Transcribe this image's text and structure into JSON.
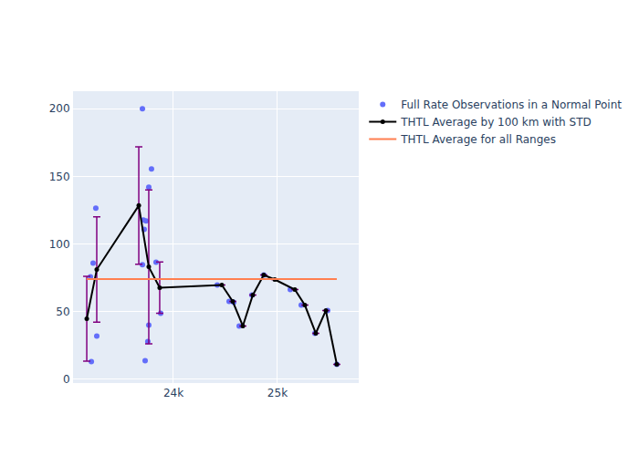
{
  "chart_data": {
    "type": "scatter",
    "xlim": [
      23035,
      25781
    ],
    "ylim": [
      -3,
      213
    ],
    "xticks": [
      {
        "value": 24000,
        "label": "24k"
      },
      {
        "value": 25000,
        "label": "25k"
      }
    ],
    "yticks": [
      0,
      50,
      100,
      150,
      200
    ],
    "grid": true,
    "legend": "right",
    "series": [
      {
        "name": "Full Rate Observations in a Normal Point",
        "type": "scatter",
        "marker": "circle",
        "color": "#636efa",
        "x": [
          23211,
          23202,
          23228,
          23254,
          23263,
          23702,
          23702,
          23711,
          23737,
          23719,
          23789,
          23763,
          23728,
          23754,
          23763,
          23833,
          23877,
          24421,
          24535,
          24579,
          24632,
          24754,
          24868,
          25123,
          25228,
          25360,
          25482,
          25570
        ],
        "values": [
          12.8,
          75.7,
          85.8,
          126.4,
          31.8,
          200,
          84.5,
          117.6,
          117,
          110.8,
          155.4,
          141.9,
          13.5,
          27.7,
          39.9,
          86.5,
          48.6,
          69.6,
          57.4,
          56.8,
          39.2,
          62.2,
          77,
          66.2,
          54.7,
          33.8,
          50.7,
          10.8
        ]
      },
      {
        "name": "THTL Average by 100 km with STD",
        "type": "line",
        "marker": "circle",
        "color": "#000000",
        "x": [
          23167,
          23263,
          23667,
          23763,
          23868,
          24465,
          24570,
          24667,
          24763,
          24868,
          24974,
          25167,
          25263,
          25368,
          25465,
          25570
        ],
        "values": [
          44.6,
          81,
          128.4,
          83,
          67.6,
          69.6,
          57.4,
          39.2,
          62.2,
          77,
          73.6,
          66.2,
          54.7,
          33.8,
          50.7,
          10.8
        ],
        "error": [
          31.4,
          39,
          43.5,
          57,
          19,
          null,
          null,
          null,
          null,
          null,
          null,
          null,
          null,
          null,
          null,
          null
        ]
      },
      {
        "name": "THTL Average for all Ranges",
        "type": "line",
        "color": "#ff7f50",
        "x": [
          23167,
          25570
        ],
        "values": [
          74,
          74
        ]
      }
    ]
  }
}
